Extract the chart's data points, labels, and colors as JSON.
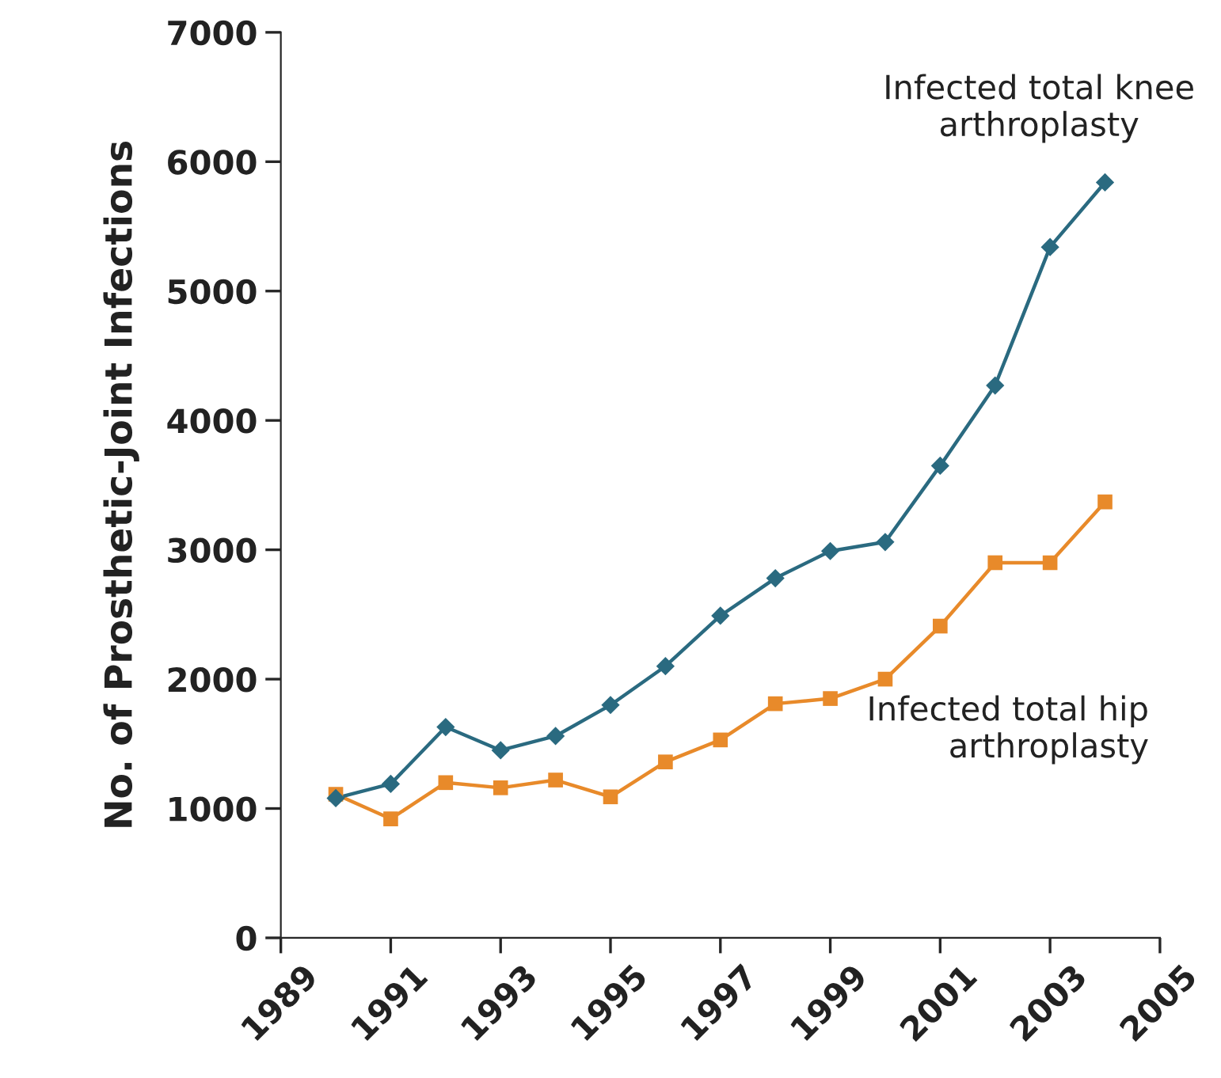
{
  "chart_data": {
    "type": "line",
    "ylabel": "No. of Prosthetic-Joint Infections",
    "x": [
      1990,
      1991,
      1992,
      1993,
      1994,
      1995,
      1996,
      1997,
      1998,
      1999,
      2000,
      2001,
      2002,
      2003,
      2004
    ],
    "series": [
      {
        "name": "Infected total knee\narthroplasty",
        "color": "#2a6a80",
        "marker": "diamond",
        "values": [
          1080,
          1190,
          1630,
          1450,
          1560,
          1800,
          2100,
          2490,
          2780,
          2990,
          3060,
          3650,
          4270,
          5340,
          5840
        ]
      },
      {
        "name": "Infected total hip\narthroplasty",
        "color": "#e88a2a",
        "marker": "square",
        "values": [
          1110,
          920,
          1200,
          1160,
          1220,
          1090,
          1360,
          1530,
          1810,
          1850,
          2000,
          2410,
          2900,
          2900,
          3370
        ]
      }
    ],
    "xlim": [
      1989,
      2005
    ],
    "xticks": [
      1989,
      1991,
      1993,
      1995,
      1997,
      1999,
      2001,
      2003,
      2005
    ],
    "ylim": [
      0,
      7000
    ],
    "yticks": [
      0,
      1000,
      2000,
      3000,
      4000,
      5000,
      6000,
      7000
    ],
    "grid": false,
    "line_style": "solid"
  }
}
